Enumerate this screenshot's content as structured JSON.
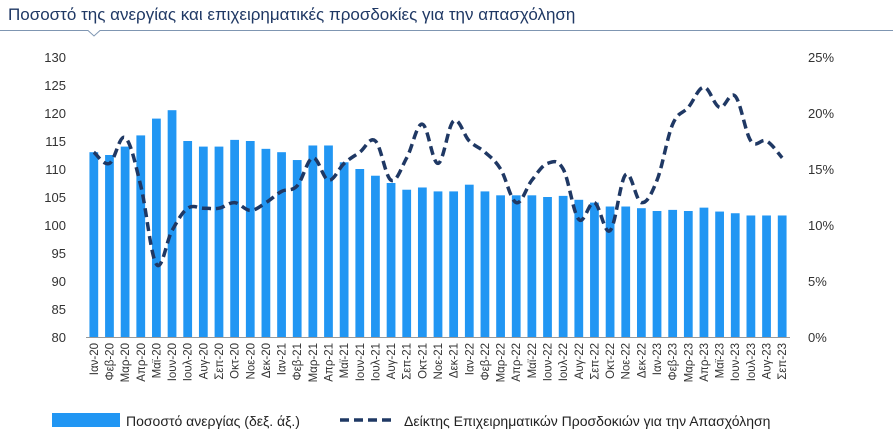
{
  "chart_data": {
    "type": "bar",
    "title": "Ποσοστό της ανεργίας και επιχειρηματικές προσδοκίες για την απασχόληση",
    "categories": [
      "Ιαν-20",
      "Φεβ-20",
      "Μαρ-20",
      "Απρ-20",
      "Μαϊ-20",
      "Ιουν-20",
      "Ιουλ-20",
      "Αυγ-20",
      "Σεπ-20",
      "Οκτ-20",
      "Νοε-20",
      "Δεκ-20",
      "Ιαν-21",
      "Φεβ-21",
      "Μαρ-21",
      "Απρ-21",
      "Μαϊ-21",
      "Ιουν-21",
      "Ιουλ-21",
      "Αυγ-21",
      "Σεπ-21",
      "Οκτ-21",
      "Νοε-21",
      "Δεκ-21",
      "Ιαν-22",
      "Φεβ-22",
      "Μαρ-22",
      "Απρ-22",
      "Μαϊ-22",
      "Ιουν-22",
      "Ιουλ-22",
      "Αυγ-22",
      "Σεπ-22",
      "Οκτ-22",
      "Νοε-22",
      "Δεκ-22",
      "Ιαν-23",
      "Φεβ-23",
      "Μαρ-23",
      "Απρ-23",
      "Μαϊ-23",
      "Ιουν-23",
      "Ιουλ-23",
      "Αυγ-23",
      "Σεπ-23"
    ],
    "xtick_labels": [
      "Ιαν-20",
      "Φεβ-20",
      "Μαρ-20",
      "Απρ-20",
      "Μαϊ-20",
      "Ιουν-20",
      "Ιουλ-20",
      "Αυγ-20",
      "Σεπ-20",
      "Οκτ-20",
      "Νοε-20",
      "Δεκ-20",
      "Ιαν-21",
      "Φεβ-21",
      "Μαρ-21",
      "Απρ-21",
      "Μαϊ-21",
      "Ιουν-21",
      "Ιουλ-21",
      "Αυγ-21",
      "Σεπ-21",
      "Οκτ-21",
      "Νοε-21",
      "Δεκ-21",
      "Ιαν-22",
      "Φεβ-22",
      "Μαρ-22",
      "Απρ-22",
      "Μαϊ-22",
      "Ιουν-22",
      "Ιουλ-22",
      "Αυγ-22",
      "Σεπ-22",
      "Οκτ-22",
      "Νοε-22",
      "Δεκ-22",
      "Ιαν-23",
      "Φεβ-23",
      "Μαρ-23",
      "Απρ-23",
      "Μαϊ-23",
      "Ιουν-23",
      "Ιουλ-23",
      "Αυγ-23",
      "Σεπ-23"
    ],
    "series": [
      {
        "name": "Ποσοστό ανεργίας (δεξ. άξ.)",
        "type": "bar",
        "axis": "left",
        "color": "#2196f3",
        "values": [
          113,
          112.5,
          114,
          116,
          119,
          120.5,
          115,
          114,
          114,
          115.2,
          115,
          113.6,
          113,
          111.6,
          114.2,
          114.2,
          111.2,
          110,
          108.8,
          107.5,
          106.3,
          106.7,
          106,
          106,
          107.2,
          106,
          105.3,
          105.3,
          105.3,
          105,
          105.2,
          104.5,
          104,
          103.3,
          103.3,
          103,
          102.5,
          102.7,
          102.5,
          103.1,
          102.4,
          102.1,
          101.7,
          101.7,
          101.7
        ]
      },
      {
        "name": "Δείκτης Επιχειρηματικών Προσδοκιών για την Απασχόληση",
        "type": "line",
        "axis": "right",
        "style": "dashed",
        "color": "#1f3864",
        "values": [
          16.5,
          15.5,
          17.8,
          13.5,
          6.5,
          9.5,
          11.5,
          11.5,
          11.5,
          12,
          11.3,
          12,
          13,
          13.5,
          16,
          14,
          15.5,
          16.5,
          17.5,
          14,
          16,
          19,
          15.5,
          19.3,
          17.5,
          16.5,
          15,
          12,
          14,
          15.5,
          15,
          10.5,
          12,
          9.5,
          14.5,
          12,
          14,
          19,
          20.5,
          22.3,
          20.5,
          21.5,
          17.5,
          17.5,
          16
        ]
      }
    ],
    "y_left": {
      "ylim": [
        80,
        130
      ],
      "ticks": [
        "80",
        "85",
        "90",
        "95",
        "100",
        "105",
        "110",
        "115",
        "120",
        "125",
        "130"
      ]
    },
    "y_right": {
      "ylim": [
        0,
        25
      ],
      "ticks": [
        "0%",
        "5%",
        "10%",
        "15%",
        "20%",
        "25%"
      ]
    },
    "grid": false,
    "legend_position": "bottom",
    "legend": [
      "Ποσοστό ανεργίας (δεξ. άξ.)",
      "Δείκτης Επιχειρηματικών Προσδοκιών για την Απασχόληση"
    ]
  },
  "colors": {
    "title": "#1f3864",
    "rule": "#7f96b2",
    "bar": "#2196f3",
    "line": "#1f3864"
  }
}
